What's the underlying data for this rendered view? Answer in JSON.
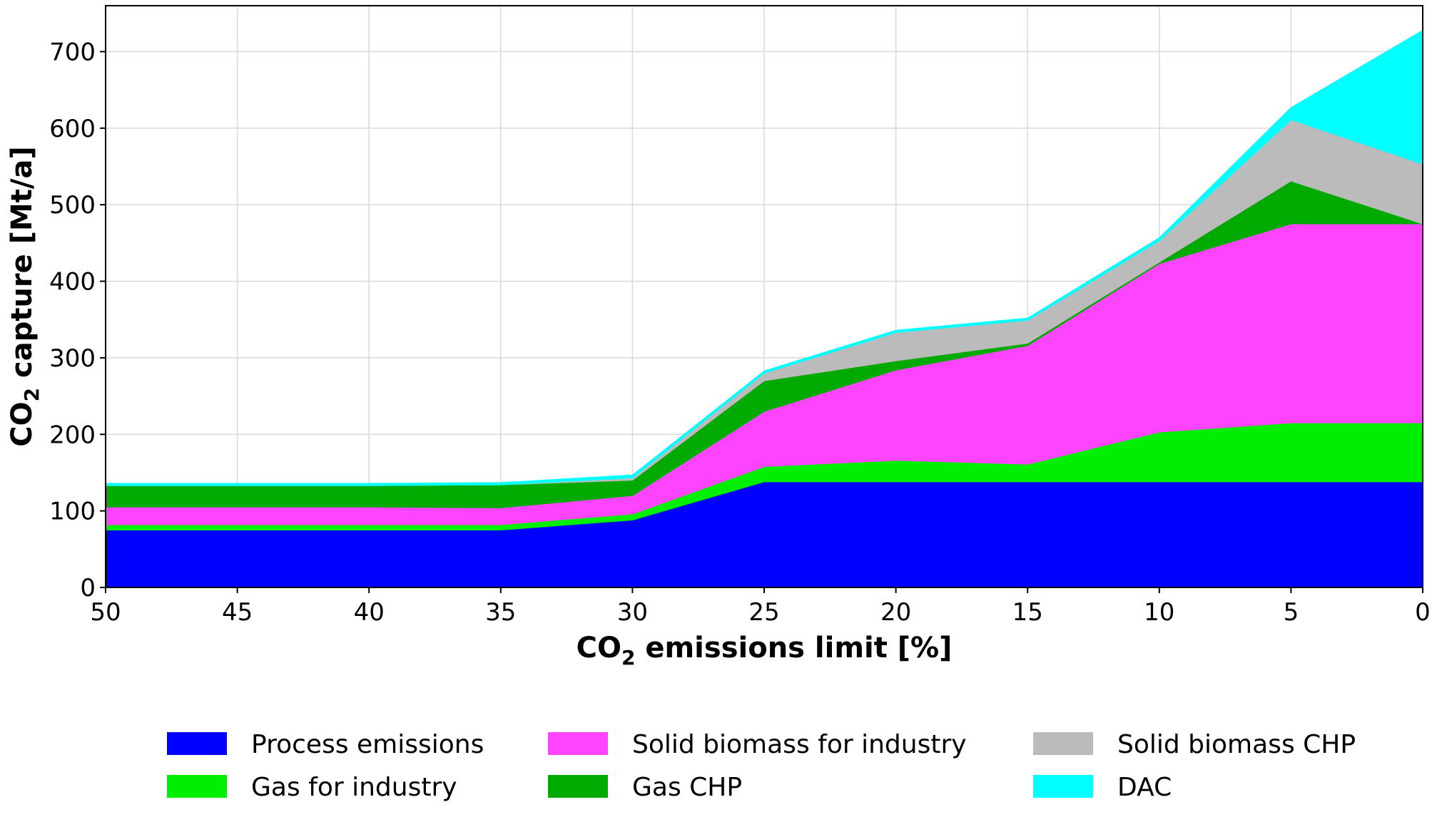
{
  "chart_data": {
    "type": "area",
    "stacked": true,
    "x": [
      50,
      45,
      40,
      35,
      30,
      25,
      20,
      15,
      10,
      5,
      0
    ],
    "xlim": [
      50,
      0
    ],
    "ylim": [
      0,
      760
    ],
    "xticks": [
      50,
      45,
      40,
      35,
      30,
      25,
      20,
      15,
      10,
      5,
      0
    ],
    "yticks": [
      0,
      100,
      200,
      300,
      400,
      500,
      600,
      700
    ],
    "xlabel": {
      "pre": "CO",
      "sub": "2",
      "post": " emissions limit [%]"
    },
    "ylabel": {
      "pre": "CO",
      "sub": "2",
      "post": " capture [Mt/a]"
    },
    "grid": true,
    "legend_position": "bottom",
    "series": [
      {
        "name": "Process emissions",
        "color": "#0000ff",
        "values": [
          75,
          75,
          75,
          75,
          88,
          138,
          138,
          138,
          138,
          138,
          138
        ]
      },
      {
        "name": "Gas for industry",
        "color": "#00ee00",
        "values": [
          7,
          7,
          7,
          7,
          8,
          20,
          28,
          23,
          65,
          77,
          77
        ]
      },
      {
        "name": "Solid biomass for industry",
        "color": "#ff44ff",
        "values": [
          23,
          23,
          23,
          22,
          24,
          72,
          118,
          155,
          220,
          260,
          260
        ]
      },
      {
        "name": "Gas CHP",
        "color": "#00aa00",
        "values": [
          28,
          28,
          28,
          30,
          20,
          40,
          12,
          3,
          2,
          56,
          0
        ]
      },
      {
        "name": "Solid biomass CHP",
        "color": "#bbbbbb",
        "values": [
          0,
          0,
          0,
          0,
          3,
          10,
          37,
          30,
          28,
          80,
          78
        ]
      },
      {
        "name": "DAC",
        "color": "#00ffff",
        "values": [
          3,
          3,
          3,
          3,
          4,
          3,
          3,
          3,
          4,
          16,
          175
        ]
      }
    ]
  }
}
